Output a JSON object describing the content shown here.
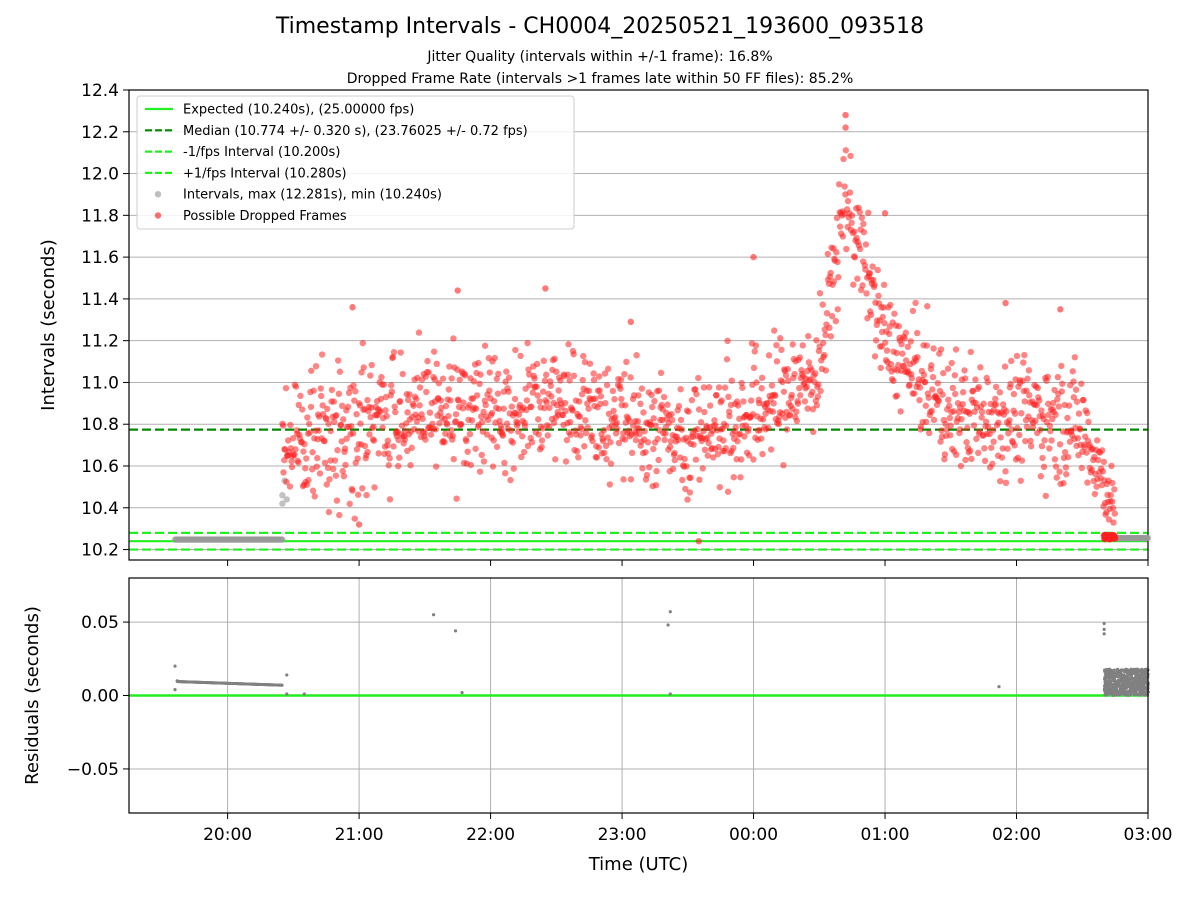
{
  "title": "Timestamp Intervals - CH0004_20250521_193600_093518",
  "subtitle_1": "Jitter Quality (intervals within +/-1 frame): 16.8%",
  "subtitle_2": "Dropped Frame Rate (intervals >1 frames late within 50 FF files): 85.2%",
  "colors": {
    "expected": "#22ee22",
    "median": "#008800",
    "fps_bounds": "#22ee22",
    "intervals": "#999999",
    "dropped": "#ff2020",
    "residuals": "#808080",
    "grid": "#b0b0b0"
  },
  "chart_data": [
    {
      "type": "scatter",
      "ylabel": "Intervals (seconds)",
      "ylim": [
        10.15,
        12.4
      ],
      "yticks": [
        "10.2",
        "10.4",
        "10.6",
        "10.8",
        "11.0",
        "11.2",
        "11.4",
        "11.6",
        "11.8",
        "12.0",
        "12.2",
        "12.4"
      ],
      "grid": "horizontal",
      "legend_position": "top-left",
      "reference_lines": [
        {
          "name": "Expected (10.240s), (25.00000 fps)",
          "y": 10.24,
          "style": "solid"
        },
        {
          "name": "Median (10.774 +/- 0.320 s), (23.76025 +/- 0.72 fps)",
          "y": 10.774,
          "style": "dashed"
        },
        {
          "name": "-1/fps Interval (10.200s)",
          "y": 10.2,
          "style": "dashed"
        },
        {
          "name": "+1/fps Interval (10.280s)",
          "y": 10.28,
          "style": "dashed"
        }
      ],
      "series": [
        {
          "name": "Intervals, max (12.281s), min (10.240s)",
          "description_points": [
            {
              "x": "19:36",
              "y": 10.248
            },
            {
              "x": "20:00",
              "y": 10.248
            },
            {
              "x": "20:25",
              "y": 10.248
            },
            {
              "x": "20:25",
              "y": 10.46
            },
            {
              "x": "20:26",
              "y": 10.53
            },
            {
              "x": "02:45",
              "y": 10.255
            },
            {
              "x": "03:00",
              "y": 10.255
            }
          ]
        },
        {
          "name": "Possible Dropped Frames",
          "range": {
            "x_start": "20:25",
            "x_end": "02:45",
            "y_min": 10.24,
            "y_max": 12.281
          },
          "envelope": [
            {
              "x": "20:30",
              "center": 10.7,
              "spread": 0.3
            },
            {
              "x": "21:00",
              "center": 10.8,
              "spread": 0.35
            },
            {
              "x": "21:30",
              "center": 10.85,
              "spread": 0.3
            },
            {
              "x": "22:00",
              "center": 10.85,
              "spread": 0.33
            },
            {
              "x": "22:30",
              "center": 10.92,
              "spread": 0.3
            },
            {
              "x": "23:00",
              "center": 10.8,
              "spread": 0.3
            },
            {
              "x": "23:30",
              "center": 10.75,
              "spread": 0.28
            },
            {
              "x": "00:00",
              "center": 10.85,
              "spread": 0.33
            },
            {
              "x": "00:30",
              "center": 11.05,
              "spread": 0.3
            },
            {
              "x": "00:42",
              "center": 11.9,
              "spread": 0.3
            },
            {
              "x": "01:00",
              "center": 11.2,
              "spread": 0.25
            },
            {
              "x": "01:30",
              "center": 10.85,
              "spread": 0.3
            },
            {
              "x": "02:00",
              "center": 10.85,
              "spread": 0.3
            },
            {
              "x": "02:30",
              "center": 10.8,
              "spread": 0.3
            },
            {
              "x": "02:45",
              "center": 10.4,
              "spread": 0.15
            }
          ],
          "outliers": [
            {
              "x": "20:57",
              "y": 11.36
            },
            {
              "x": "21:45",
              "y": 11.44
            },
            {
              "x": "22:25",
              "y": 11.45
            },
            {
              "x": "23:04",
              "y": 11.29
            },
            {
              "x": "00:00",
              "y": 11.6
            },
            {
              "x": "00:42",
              "y": 12.28
            },
            {
              "x": "00:42",
              "y": 12.22
            },
            {
              "x": "01:00",
              "y": 11.81
            },
            {
              "x": "01:55",
              "y": 11.38
            },
            {
              "x": "02:20",
              "y": 11.35
            },
            {
              "x": "21:00",
              "y": 10.32
            },
            {
              "x": "23:35",
              "y": 10.24
            }
          ]
        }
      ]
    },
    {
      "type": "scatter",
      "xlabel": "Time (UTC)",
      "ylabel": "Residuals (seconds)",
      "ylim": [
        -0.08,
        0.08
      ],
      "yticks": [
        "−0.05",
        "0.00",
        "0.05"
      ],
      "xticks": [
        "20:00",
        "21:00",
        "22:00",
        "23:00",
        "00:00",
        "01:00",
        "02:00",
        "03:00"
      ],
      "grid": "both",
      "reference_lines": [
        {
          "name": "zero",
          "y": 0.0,
          "style": "solid"
        }
      ],
      "series": [
        {
          "name": "residuals",
          "points": [
            {
              "x": "19:36",
              "y": 0.02
            },
            {
              "x": "19:36",
              "y": 0.004
            },
            {
              "x": "19:37",
              "y": 0.01
            },
            {
              "x": "20:27",
              "y": 0.014
            },
            {
              "x": "20:27",
              "y": 0.001
            },
            {
              "x": "20:35",
              "y": 0.001
            },
            {
              "x": "21:34",
              "y": 0.055
            },
            {
              "x": "21:44",
              "y": 0.044
            },
            {
              "x": "21:47",
              "y": 0.002
            },
            {
              "x": "23:22",
              "y": 0.057
            },
            {
              "x": "23:21",
              "y": 0.048
            },
            {
              "x": "23:22",
              "y": 0.001
            },
            {
              "x": "01:52",
              "y": 0.006
            },
            {
              "x": "02:40",
              "y": 0.049
            },
            {
              "x": "02:40",
              "y": 0.045
            },
            {
              "x": "02:40",
              "y": 0.042
            }
          ],
          "bands": [
            {
              "x_start": "19:37",
              "x_end": "20:25",
              "y_start": 0.0095,
              "y_end": 0.007
            },
            {
              "x_start": "02:40",
              "x_end": "03:00",
              "y_min": 0.0,
              "y_max": 0.018
            }
          ]
        }
      ]
    }
  ]
}
